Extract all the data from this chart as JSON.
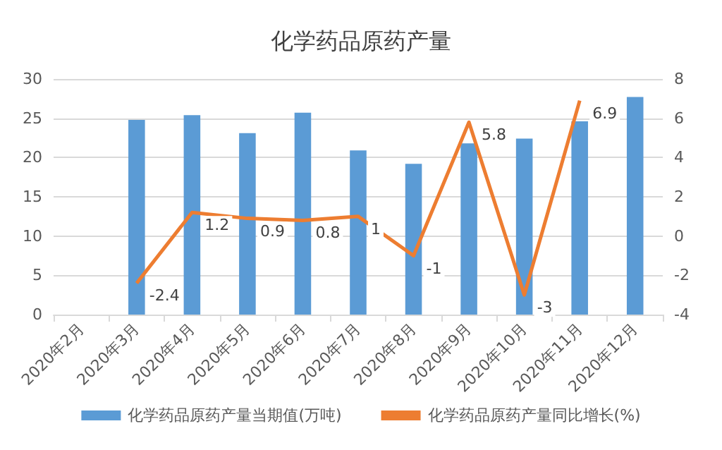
{
  "chart_data": {
    "type": "bar",
    "title": "化学药品原药产量",
    "categories": [
      "2020年2月",
      "2020年3月",
      "2020年4月",
      "2020年5月",
      "2020年6月",
      "2020年7月",
      "2020年8月",
      "2020年9月",
      "2020年10月",
      "2020年11月",
      "2020年12月"
    ],
    "series": [
      {
        "name": "化学药品原药产量当期值(万吨)",
        "color": "#5b9bd5",
        "values": [
          null,
          24.8,
          25.4,
          23.1,
          25.7,
          20.9,
          19.2,
          21.8,
          22.4,
          24.6,
          27.7
        ]
      },
      {
        "name": "化学药品原药产量同比增长(%)",
        "type": "line",
        "axis": "y2",
        "color": "#ed7d31",
        "data_labels": true,
        "values": [
          null,
          -2.4,
          1.2,
          0.9,
          0.8,
          1,
          -1,
          5.8,
          -3,
          6.9,
          null
        ]
      }
    ],
    "ylim": [
      0,
      30
    ],
    "yticks": [
      0,
      5,
      10,
      15,
      20,
      25,
      30
    ],
    "y2lim": [
      -4,
      8
    ],
    "y2ticks": [
      -4,
      -2,
      0,
      2,
      4,
      6,
      8
    ],
    "grid": "y",
    "legend": "bottom",
    "marker": "none"
  }
}
